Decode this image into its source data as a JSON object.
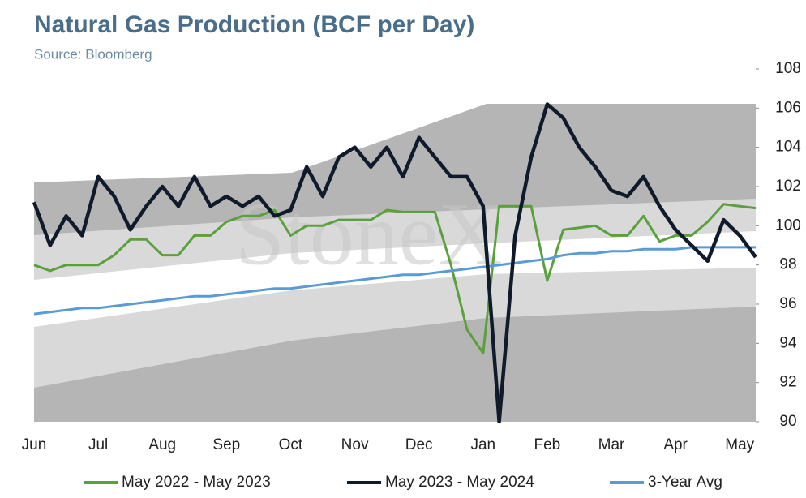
{
  "chart_data": {
    "type": "line",
    "title": "Natural Gas Production (BCF per Day)",
    "subtitle": "Source: Bloomberg",
    "watermark": "StoneX",
    "categories": [
      "Jun",
      null,
      null,
      null,
      "Jul",
      null,
      null,
      null,
      "Aug",
      null,
      null,
      null,
      "Sep",
      null,
      null,
      null,
      "Oct",
      null,
      null,
      null,
      "Nov",
      null,
      null,
      null,
      "Dec",
      null,
      null,
      null,
      "Jan",
      null,
      null,
      null,
      "Feb",
      null,
      null,
      null,
      "Mar",
      null,
      null,
      null,
      "Apr",
      null,
      null,
      null,
      "May",
      null
    ],
    "ylim": [
      90,
      108
    ],
    "yticks": [
      90,
      92,
      94,
      96,
      98,
      100,
      102,
      104,
      106,
      108
    ],
    "series": [
      {
        "name": "May 2022 - May 2023",
        "color": "#5aa03c",
        "width": 3,
        "values": [
          98.0,
          97.7,
          98.0,
          98.0,
          98.0,
          98.5,
          99.3,
          99.3,
          98.5,
          98.5,
          99.5,
          99.5,
          100.2,
          100.5,
          100.5,
          100.8,
          99.5,
          100.0,
          100.0,
          100.3,
          100.3,
          100.3,
          100.8,
          100.7,
          100.7,
          100.7,
          98.0,
          94.7,
          93.5,
          101.0,
          101.0,
          101.0,
          97.2,
          99.8,
          99.9,
          100.0,
          99.5,
          99.5,
          100.5,
          99.2,
          99.5,
          99.5,
          100.2,
          101.1,
          101.0,
          100.9
        ]
      },
      {
        "name": "May 2023 - May 2024",
        "color": "#0f1a2a",
        "width": 4.5,
        "values": [
          101.2,
          99.0,
          100.5,
          99.5,
          102.5,
          101.5,
          99.8,
          101.0,
          102.0,
          101.0,
          102.5,
          101.0,
          101.5,
          101.0,
          101.5,
          100.5,
          100.8,
          103.0,
          101.5,
          103.5,
          104.0,
          103.0,
          104.0,
          102.5,
          104.5,
          103.5,
          102.5,
          102.5,
          101.0,
          90.0,
          99.5,
          103.5,
          106.2,
          105.5,
          104.0,
          103.0,
          101.8,
          101.5,
          102.5,
          101.0,
          99.8,
          99.0,
          98.2,
          100.3,
          99.5,
          98.4
        ]
      },
      {
        "name": "3-Year Avg",
        "color": "#5b9bd5",
        "width": 3,
        "values": [
          95.5,
          95.6,
          95.7,
          95.8,
          95.8,
          95.9,
          96.0,
          96.1,
          96.2,
          96.3,
          96.4,
          96.4,
          96.5,
          96.6,
          96.7,
          96.8,
          96.8,
          96.9,
          97.0,
          97.1,
          97.2,
          97.3,
          97.4,
          97.5,
          97.5,
          97.6,
          97.7,
          97.8,
          97.9,
          98.0,
          98.1,
          98.2,
          98.3,
          98.5,
          98.6,
          98.6,
          98.7,
          98.7,
          98.8,
          98.8,
          98.8,
          98.9,
          98.9,
          98.9,
          98.9,
          98.9
        ]
      }
    ]
  }
}
